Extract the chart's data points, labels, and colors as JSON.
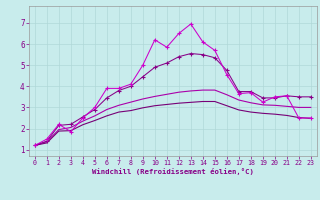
{
  "xlabel": "Windchill (Refroidissement éolien,°C)",
  "background_color": "#c8ecec",
  "grid_color": "#b0d8d8",
  "xlim": [
    -0.5,
    23.5
  ],
  "ylim": [
    0.7,
    7.8
  ],
  "x_ticks": [
    0,
    1,
    2,
    3,
    4,
    5,
    6,
    7,
    8,
    9,
    10,
    11,
    12,
    13,
    14,
    15,
    16,
    17,
    18,
    19,
    20,
    21,
    22,
    23
  ],
  "yticks": [
    1,
    2,
    3,
    4,
    5,
    6,
    7
  ],
  "line1_x": [
    0,
    1,
    2,
    3,
    4,
    5,
    6,
    7,
    8,
    9,
    10,
    11,
    12,
    13,
    14,
    15,
    16,
    17,
    18,
    19,
    20,
    21,
    22,
    23
  ],
  "line1_y": [
    1.2,
    1.5,
    2.2,
    1.85,
    2.5,
    3.0,
    3.9,
    3.9,
    4.1,
    5.0,
    6.2,
    5.85,
    6.5,
    6.95,
    6.1,
    5.7,
    4.55,
    3.65,
    3.7,
    3.25,
    3.5,
    3.55,
    2.5,
    2.5
  ],
  "line1_color": "#cc00cc",
  "line1_marker": "+",
  "line2_x": [
    0,
    1,
    2,
    3,
    4,
    5,
    6,
    7,
    8,
    9,
    10,
    11,
    12,
    13,
    14,
    15,
    16,
    17,
    18,
    19,
    20,
    21,
    22,
    23
  ],
  "line2_y": [
    1.2,
    1.4,
    2.15,
    2.2,
    2.55,
    2.9,
    3.45,
    3.8,
    4.0,
    4.45,
    4.9,
    5.1,
    5.4,
    5.55,
    5.5,
    5.35,
    4.75,
    3.75,
    3.75,
    3.45,
    3.45,
    3.55,
    3.5,
    3.5
  ],
  "line2_color": "#880088",
  "line2_marker": "+",
  "line3_x": [
    0,
    1,
    2,
    3,
    4,
    5,
    6,
    7,
    8,
    9,
    10,
    11,
    12,
    13,
    14,
    15,
    16,
    17,
    18,
    19,
    20,
    21,
    22,
    23
  ],
  "line3_y": [
    1.2,
    1.38,
    1.95,
    2.05,
    2.35,
    2.6,
    2.9,
    3.1,
    3.25,
    3.4,
    3.52,
    3.62,
    3.72,
    3.78,
    3.82,
    3.82,
    3.6,
    3.35,
    3.22,
    3.12,
    3.1,
    3.05,
    3.0,
    3.0
  ],
  "line3_color": "#aa00aa",
  "line4_x": [
    0,
    1,
    2,
    3,
    4,
    5,
    6,
    7,
    8,
    9,
    10,
    11,
    12,
    13,
    14,
    15,
    16,
    17,
    18,
    19,
    20,
    21,
    22,
    23
  ],
  "line4_y": [
    1.2,
    1.32,
    1.88,
    1.9,
    2.18,
    2.38,
    2.6,
    2.78,
    2.85,
    2.98,
    3.08,
    3.14,
    3.2,
    3.24,
    3.28,
    3.28,
    3.08,
    2.88,
    2.78,
    2.72,
    2.68,
    2.62,
    2.52,
    2.48
  ],
  "line4_color": "#770077"
}
